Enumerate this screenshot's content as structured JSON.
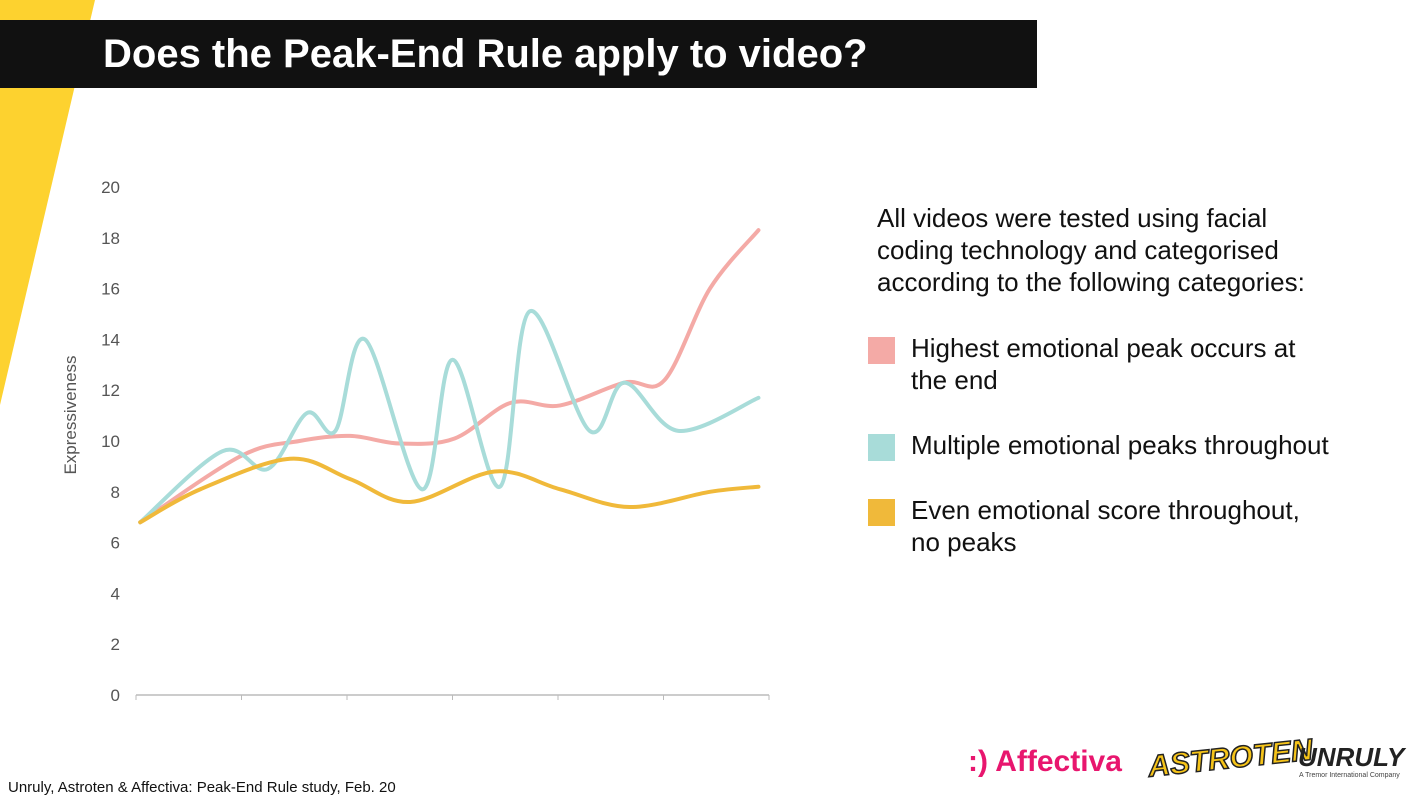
{
  "title": "Does the Peak-End Rule apply to video?",
  "chart_data": {
    "type": "line",
    "ylabel": "Expressiveness",
    "xlim": [
      0,
      6
    ],
    "xticks": [
      0,
      1,
      2,
      3,
      4,
      5,
      6
    ],
    "ylim": [
      0,
      20
    ],
    "yticks": [
      0,
      2,
      4,
      6,
      8,
      10,
      12,
      14,
      16,
      18,
      20
    ],
    "series": [
      {
        "name": "Highest emotional peak occurs at the end",
        "color": "#f4aaa6",
        "x": [
          0.04,
          0.99,
          1.55,
          2.03,
          2.5,
          3.02,
          3.55,
          4.02,
          4.63,
          5.01,
          5.44,
          5.9
        ],
        "values": [
          6.8,
          9.4,
          10.0,
          10.2,
          9.9,
          10.1,
          11.5,
          11.4,
          12.3,
          12.4,
          16,
          18.3
        ]
      },
      {
        "name": "Multiple emotional peaks throughout",
        "color": "#a8dcd9",
        "x": [
          0.04,
          0.82,
          1.25,
          1.62,
          1.89,
          2.17,
          2.71,
          3.0,
          3.45,
          3.73,
          4.3,
          4.63,
          5.14,
          5.9
        ],
        "values": [
          6.8,
          9.6,
          8.9,
          11.1,
          10.4,
          14.0,
          8.1,
          13.2,
          8.2,
          15.1,
          10.4,
          12.3,
          10.4,
          11.7
        ]
      },
      {
        "name": "Even emotional score throughout, no peaks",
        "color": "#f0b93a",
        "x": [
          0.04,
          0.61,
          1.46,
          2.03,
          2.6,
          3.4,
          4.02,
          4.68,
          5.44,
          5.9
        ],
        "values": [
          6.8,
          8.1,
          9.3,
          8.5,
          7.6,
          8.8,
          8.1,
          7.4,
          8.0,
          8.2
        ]
      }
    ]
  },
  "intro": "All videos were tested using facial coding technology and categorised according to the following categories:",
  "source": "Unruly, Astroten & Affectiva: Peak-End Rule study, Feb. 20",
  "logos": {
    "affectiva": ":) Affectiva",
    "astroten": "ASTROTEN",
    "unruly": "UNRULY",
    "unruly_tagline": "A Tremor International Company"
  }
}
